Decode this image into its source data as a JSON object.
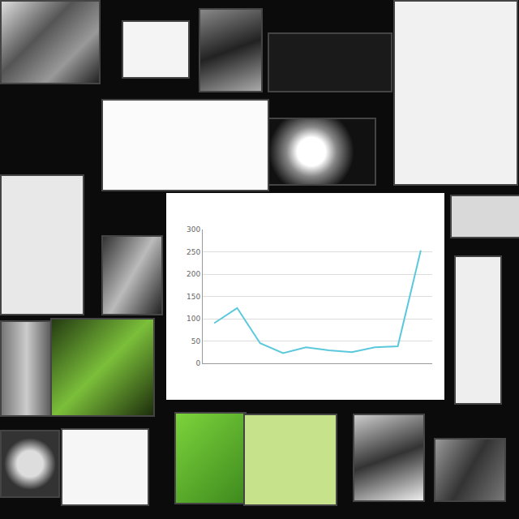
{
  "chart_data": {
    "type": "line",
    "categories": [
      null,
      null,
      null,
      null,
      null,
      null,
      null,
      null,
      null,
      null
    ],
    "values": [
      90,
      124,
      45,
      23,
      36,
      29,
      25,
      36,
      38,
      253
    ],
    "color": "#5bc8dc",
    "ylim": [
      0,
      300
    ],
    "yticks": [
      0,
      50,
      100,
      150,
      200,
      250,
      300
    ],
    "grid": true,
    "tick_labels": "y"
  }
}
